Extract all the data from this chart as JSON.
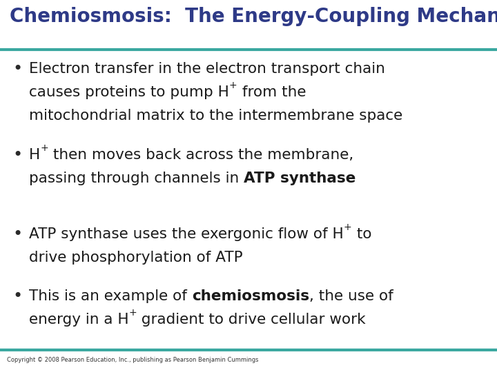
{
  "title": "Chemiosmosis:  The Energy-Coupling Mechanism",
  "title_color": "#2E3A87",
  "title_fontsize": 20,
  "line_color": "#3AA8A0",
  "background_color": "#FFFFFF",
  "bullet_color": "#2a2a2a",
  "text_color": "#1a1a1a",
  "copyright": "Copyright © 2008 Pearson Education, Inc., publishing as Pearson Benjamin Cummings",
  "base_fontsize": 15.5,
  "bullet_items": [
    {
      "lines": [
        [
          {
            "text": "Electron transfer in the electron transport chain",
            "bold": false,
            "super": false
          }
        ],
        [
          {
            "text": "causes proteins to pump H",
            "bold": false,
            "super": false
          },
          {
            "text": "+",
            "bold": false,
            "super": true
          },
          {
            "text": " from the",
            "bold": false,
            "super": false
          }
        ],
        [
          {
            "text": "mitochondrial matrix to the intermembrane space",
            "bold": false,
            "super": false
          }
        ]
      ]
    },
    {
      "lines": [
        [
          {
            "text": "H",
            "bold": false,
            "super": false
          },
          {
            "text": "+",
            "bold": false,
            "super": true
          },
          {
            "text": " then moves back across the membrane,",
            "bold": false,
            "super": false
          }
        ],
        [
          {
            "text": "passing through channels in ",
            "bold": false,
            "super": false
          },
          {
            "text": "ATP synthase",
            "bold": true,
            "super": false
          }
        ]
      ]
    },
    {
      "lines": [
        [
          {
            "text": "ATP synthase uses the exergonic flow of H",
            "bold": false,
            "super": false
          },
          {
            "text": "+",
            "bold": false,
            "super": true
          },
          {
            "text": " to",
            "bold": false,
            "super": false
          }
        ],
        [
          {
            "text": "drive phosphorylation of ATP",
            "bold": false,
            "super": false
          }
        ]
      ]
    },
    {
      "lines": [
        [
          {
            "text": "This is an example of ",
            "bold": false,
            "super": false
          },
          {
            "text": "chemiosmosis",
            "bold": true,
            "super": false
          },
          {
            "text": ", the use of",
            "bold": false,
            "super": false
          }
        ],
        [
          {
            "text": "energy in a H",
            "bold": false,
            "super": false
          },
          {
            "text": "+",
            "bold": false,
            "super": true
          },
          {
            "text": " gradient to drive cellular work",
            "bold": false,
            "super": false
          }
        ]
      ]
    }
  ]
}
